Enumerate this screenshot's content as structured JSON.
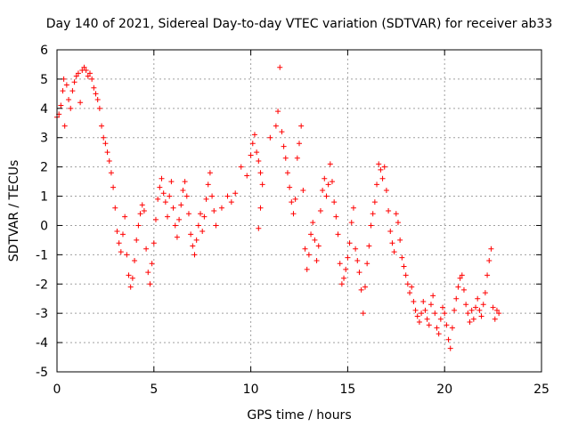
{
  "chart_data": {
    "type": "scatter",
    "title": "Day 140 of 2021, Sidereal Day-to-day VTEC variation (SDTVAR) for receiver ab33",
    "xlabel": "GPS time / hours",
    "ylabel": "SDTVAR / TECUs",
    "xlim": [
      0,
      25
    ],
    "ylim": [
      -5,
      6
    ],
    "xticks": [
      0,
      5,
      10,
      15,
      20,
      25
    ],
    "yticks": [
      -5,
      -4,
      -3,
      -2,
      -1,
      0,
      1,
      2,
      3,
      4,
      5,
      6
    ],
    "grid": true,
    "marker": "+",
    "color": "#ff0000",
    "series": [
      {
        "name": "SDTVAR",
        "points": [
          [
            0.0,
            3.7
          ],
          [
            0.1,
            3.8
          ],
          [
            0.2,
            4.1
          ],
          [
            0.3,
            4.6
          ],
          [
            0.35,
            5.0
          ],
          [
            0.4,
            3.4
          ],
          [
            0.5,
            4.8
          ],
          [
            0.6,
            4.3
          ],
          [
            0.7,
            4.0
          ],
          [
            0.8,
            4.6
          ],
          [
            0.9,
            4.9
          ],
          [
            1.0,
            5.1
          ],
          [
            1.1,
            5.2
          ],
          [
            1.2,
            4.2
          ],
          [
            1.3,
            5.3
          ],
          [
            1.4,
            5.4
          ],
          [
            1.5,
            5.3
          ],
          [
            1.6,
            5.1
          ],
          [
            1.7,
            5.2
          ],
          [
            1.8,
            5.0
          ],
          [
            1.9,
            4.7
          ],
          [
            2.0,
            4.5
          ],
          [
            2.1,
            4.3
          ],
          [
            2.2,
            4.0
          ],
          [
            2.3,
            3.4
          ],
          [
            2.4,
            3.0
          ],
          [
            2.5,
            2.8
          ],
          [
            2.6,
            2.5
          ],
          [
            2.7,
            2.2
          ],
          [
            2.8,
            1.8
          ],
          [
            2.9,
            1.3
          ],
          [
            3.0,
            0.6
          ],
          [
            3.1,
            -0.2
          ],
          [
            3.2,
            -0.6
          ],
          [
            3.3,
            -0.9
          ],
          [
            3.4,
            -0.3
          ],
          [
            3.5,
            0.3
          ],
          [
            3.6,
            -1.0
          ],
          [
            3.7,
            -1.7
          ],
          [
            3.8,
            -2.1
          ],
          [
            3.9,
            -1.8
          ],
          [
            4.0,
            -1.2
          ],
          [
            4.1,
            -0.5
          ],
          [
            4.2,
            0.0
          ],
          [
            4.3,
            0.4
          ],
          [
            4.4,
            0.7
          ],
          [
            4.5,
            0.5
          ],
          [
            4.6,
            -0.8
          ],
          [
            4.7,
            -1.6
          ],
          [
            4.8,
            -2.0
          ],
          [
            4.9,
            -1.3
          ],
          [
            5.0,
            -0.6
          ],
          [
            5.1,
            0.2
          ],
          [
            5.2,
            0.9
          ],
          [
            5.3,
            1.3
          ],
          [
            5.4,
            1.6
          ],
          [
            5.5,
            1.1
          ],
          [
            5.6,
            0.8
          ],
          [
            5.7,
            0.3
          ],
          [
            5.8,
            1.0
          ],
          [
            5.9,
            1.5
          ],
          [
            6.0,
            0.6
          ],
          [
            6.1,
            0.0
          ],
          [
            6.2,
            -0.4
          ],
          [
            6.3,
            0.2
          ],
          [
            6.4,
            0.7
          ],
          [
            6.5,
            1.2
          ],
          [
            6.6,
            1.5
          ],
          [
            6.7,
            1.0
          ],
          [
            6.8,
            0.4
          ],
          [
            6.9,
            -0.3
          ],
          [
            7.0,
            -0.7
          ],
          [
            7.1,
            -1.0
          ],
          [
            7.2,
            -0.5
          ],
          [
            7.3,
            0.0
          ],
          [
            7.4,
            0.4
          ],
          [
            7.5,
            -0.2
          ],
          [
            7.6,
            0.3
          ],
          [
            7.7,
            0.9
          ],
          [
            7.8,
            1.4
          ],
          [
            7.9,
            1.8
          ],
          [
            8.0,
            1.0
          ],
          [
            8.1,
            0.5
          ],
          [
            8.2,
            0.0
          ],
          [
            8.5,
            0.6
          ],
          [
            8.8,
            1.0
          ],
          [
            9.0,
            0.8
          ],
          [
            9.2,
            1.1
          ],
          [
            9.5,
            2.0
          ],
          [
            9.8,
            1.7
          ],
          [
            10.0,
            2.4
          ],
          [
            10.1,
            2.8
          ],
          [
            10.2,
            3.1
          ],
          [
            10.3,
            2.5
          ],
          [
            10.4,
            2.2
          ],
          [
            10.5,
            1.8
          ],
          [
            10.6,
            1.4
          ],
          [
            10.4,
            -0.1
          ],
          [
            10.5,
            0.6
          ],
          [
            11.0,
            3.0
          ],
          [
            11.3,
            3.4
          ],
          [
            11.4,
            3.9
          ],
          [
            11.5,
            5.4
          ],
          [
            11.6,
            3.2
          ],
          [
            11.7,
            2.7
          ],
          [
            11.8,
            2.3
          ],
          [
            11.9,
            1.8
          ],
          [
            12.0,
            1.3
          ],
          [
            12.1,
            0.8
          ],
          [
            12.2,
            0.4
          ],
          [
            12.3,
            0.9
          ],
          [
            12.4,
            2.3
          ],
          [
            12.5,
            2.8
          ],
          [
            12.6,
            3.4
          ],
          [
            12.7,
            1.2
          ],
          [
            12.8,
            -0.8
          ],
          [
            12.9,
            -1.5
          ],
          [
            13.0,
            -1.0
          ],
          [
            13.1,
            -0.3
          ],
          [
            13.2,
            0.1
          ],
          [
            13.3,
            -0.5
          ],
          [
            13.4,
            -1.2
          ],
          [
            13.5,
            -0.7
          ],
          [
            13.6,
            0.5
          ],
          [
            13.7,
            1.2
          ],
          [
            13.8,
            1.6
          ],
          [
            13.9,
            1.0
          ],
          [
            14.0,
            1.4
          ],
          [
            14.1,
            2.1
          ],
          [
            14.2,
            1.5
          ],
          [
            14.3,
            0.8
          ],
          [
            14.4,
            0.3
          ],
          [
            14.5,
            -0.3
          ],
          [
            14.6,
            -1.3
          ],
          [
            14.7,
            -2.0
          ],
          [
            14.8,
            -1.8
          ],
          [
            14.9,
            -1.5
          ],
          [
            15.0,
            -1.1
          ],
          [
            15.1,
            -0.6
          ],
          [
            15.2,
            0.1
          ],
          [
            15.3,
            0.6
          ],
          [
            15.4,
            -0.8
          ],
          [
            15.5,
            -1.2
          ],
          [
            15.6,
            -1.6
          ],
          [
            15.7,
            -2.2
          ],
          [
            15.8,
            -3.0
          ],
          [
            15.9,
            -2.1
          ],
          [
            16.0,
            -1.3
          ],
          [
            16.1,
            -0.7
          ],
          [
            16.2,
            0.0
          ],
          [
            16.3,
            0.4
          ],
          [
            16.4,
            0.8
          ],
          [
            16.5,
            1.4
          ],
          [
            16.6,
            2.1
          ],
          [
            16.7,
            1.9
          ],
          [
            16.8,
            1.6
          ],
          [
            16.9,
            2.0
          ],
          [
            17.0,
            1.2
          ],
          [
            17.1,
            0.5
          ],
          [
            17.2,
            -0.2
          ],
          [
            17.3,
            -0.6
          ],
          [
            17.4,
            -0.9
          ],
          [
            17.5,
            0.4
          ],
          [
            17.6,
            0.1
          ],
          [
            17.7,
            -0.5
          ],
          [
            17.8,
            -1.1
          ],
          [
            17.9,
            -1.4
          ],
          [
            18.0,
            -1.7
          ],
          [
            18.1,
            -2.0
          ],
          [
            18.2,
            -2.3
          ],
          [
            18.3,
            -2.1
          ],
          [
            18.4,
            -2.6
          ],
          [
            18.5,
            -2.9
          ],
          [
            18.6,
            -3.1
          ],
          [
            18.7,
            -3.3
          ],
          [
            18.8,
            -3.0
          ],
          [
            18.9,
            -2.6
          ],
          [
            19.0,
            -2.9
          ],
          [
            19.1,
            -3.2
          ],
          [
            19.2,
            -3.4
          ],
          [
            19.3,
            -2.7
          ],
          [
            19.4,
            -2.4
          ],
          [
            19.5,
            -3.0
          ],
          [
            19.6,
            -3.5
          ],
          [
            19.7,
            -3.7
          ],
          [
            19.8,
            -3.2
          ],
          [
            19.9,
            -2.8
          ],
          [
            20.0,
            -3.0
          ],
          [
            20.1,
            -3.4
          ],
          [
            20.2,
            -3.9
          ],
          [
            20.3,
            -4.2
          ],
          [
            20.4,
            -3.5
          ],
          [
            20.5,
            -2.9
          ],
          [
            20.6,
            -2.5
          ],
          [
            20.7,
            -2.1
          ],
          [
            20.8,
            -1.8
          ],
          [
            20.9,
            -1.7
          ],
          [
            21.0,
            -2.2
          ],
          [
            21.1,
            -2.7
          ],
          [
            21.2,
            -3.0
          ],
          [
            21.3,
            -3.3
          ],
          [
            21.4,
            -2.9
          ],
          [
            21.5,
            -3.2
          ],
          [
            21.6,
            -2.8
          ],
          [
            21.7,
            -2.5
          ],
          [
            21.8,
            -2.9
          ],
          [
            21.9,
            -3.1
          ],
          [
            22.0,
            -2.7
          ],
          [
            22.1,
            -2.3
          ],
          [
            22.2,
            -1.7
          ],
          [
            22.3,
            -1.2
          ],
          [
            22.4,
            -0.8
          ],
          [
            22.5,
            -2.8
          ],
          [
            22.6,
            -3.2
          ],
          [
            22.7,
            -2.9
          ],
          [
            22.8,
            -3.0
          ]
        ]
      }
    ]
  }
}
